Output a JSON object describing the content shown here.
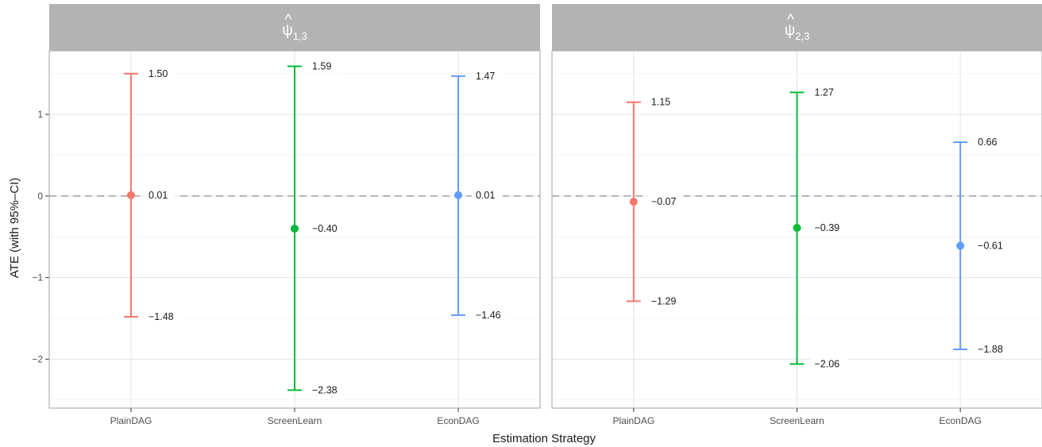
{
  "chart_data": {
    "type": "errorbar",
    "xlabel": "Estimation Strategy",
    "ylabel": "ATE (with 95%–CI)",
    "categories": [
      "PlainDAG",
      "ScreenLearn",
      "EconDAG"
    ],
    "colors": {
      "PlainDAG": "#F8766D",
      "ScreenLearn": "#00BA38",
      "EconDAG": "#619CFF"
    },
    "ylim": [
      -2.6,
      1.78
    ],
    "yticks": [
      1,
      0,
      -1,
      -2
    ],
    "ytick_labels": [
      "1",
      "0",
      "−1",
      "−2"
    ],
    "reference_line": 0,
    "panels": [
      {
        "strip_main": "ψ",
        "strip_hat": "^",
        "strip_sub": "1,3",
        "points": [
          {
            "category": "PlainDAG",
            "estimate": 0.01,
            "lower": -1.48,
            "upper": 1.5,
            "estimate_label": "0.01",
            "lower_label": "−1.48",
            "upper_label": "1.50"
          },
          {
            "category": "ScreenLearn",
            "estimate": -0.4,
            "lower": -2.38,
            "upper": 1.59,
            "estimate_label": "−0.40",
            "lower_label": "−2.38",
            "upper_label": "1.59"
          },
          {
            "category": "EconDAG",
            "estimate": 0.01,
            "lower": -1.46,
            "upper": 1.47,
            "estimate_label": "0.01",
            "lower_label": "−1.46",
            "upper_label": "1.47"
          }
        ]
      },
      {
        "strip_main": "ψ",
        "strip_hat": "^",
        "strip_sub": "2,3",
        "points": [
          {
            "category": "PlainDAG",
            "estimate": -0.07,
            "lower": -1.29,
            "upper": 1.15,
            "estimate_label": "−0.07",
            "lower_label": "−1.29",
            "upper_label": "1.15"
          },
          {
            "category": "ScreenLearn",
            "estimate": -0.39,
            "lower": -2.06,
            "upper": 1.27,
            "estimate_label": "−0.39",
            "lower_label": "−2.06",
            "upper_label": "1.27"
          },
          {
            "category": "EconDAG",
            "estimate": -0.61,
            "lower": -1.88,
            "upper": 0.66,
            "estimate_label": "−0.61",
            "lower_label": "−1.88",
            "upper_label": "0.66"
          }
        ]
      }
    ]
  }
}
